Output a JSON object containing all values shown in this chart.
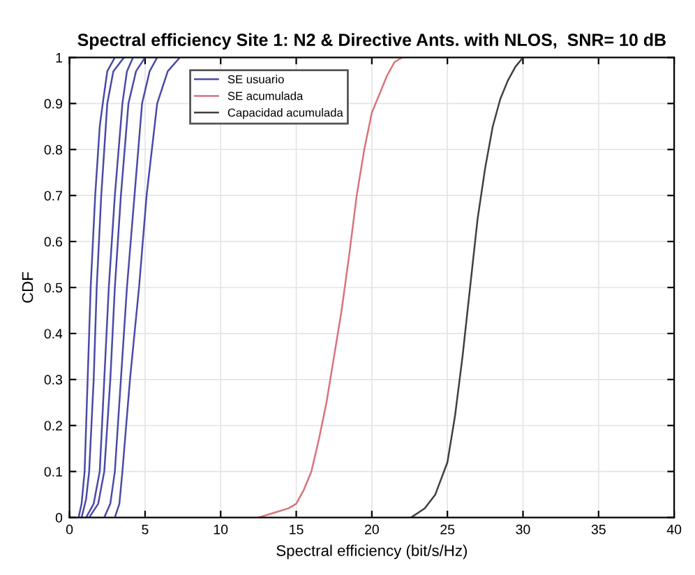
{
  "chart_data": {
    "type": "line",
    "title": "Spectral efficiency Site 1: N2 & Directive Ants. with NLOS,  SNR= 10 dB",
    "xlabel": "Spectral efficiency (bit/s/Hz)",
    "ylabel": "CDF",
    "series": [
      {
        "name": "SE usuario",
        "color": "#4a4aa8",
        "x": [
          0.6,
          0.8,
          1.0,
          1.2,
          1.4,
          1.7,
          2.0,
          2.2,
          2.5,
          3.0
        ],
        "values": [
          0,
          0.03,
          0.1,
          0.3,
          0.5,
          0.7,
          0.85,
          0.9,
          0.97,
          1
        ]
      },
      {
        "color": "#4a4aa8",
        "x": [
          0.8,
          1.1,
          1.3,
          1.6,
          1.8,
          2.1,
          2.5,
          2.9,
          3.6
        ],
        "values": [
          0,
          0.04,
          0.1,
          0.3,
          0.5,
          0.7,
          0.9,
          0.97,
          1
        ]
      },
      {
        "color": "#4a4aa8",
        "x": [
          1.1,
          1.6,
          2.0,
          2.3,
          2.6,
          3.0,
          3.5,
          3.8,
          4.2
        ],
        "values": [
          0,
          0.03,
          0.1,
          0.3,
          0.5,
          0.7,
          0.9,
          0.97,
          1
        ]
      },
      {
        "color": "#4a4aa8",
        "x": [
          1.3,
          1.9,
          2.3,
          2.7,
          3.0,
          3.4,
          3.9,
          4.4,
          5.0
        ],
        "values": [
          0,
          0.03,
          0.1,
          0.3,
          0.5,
          0.7,
          0.9,
          0.97,
          1
        ]
      },
      {
        "color": "#4a4aa8",
        "x": [
          2.3,
          2.7,
          3.0,
          3.4,
          3.8,
          4.3,
          4.8,
          5.3,
          5.8
        ],
        "values": [
          0,
          0.03,
          0.1,
          0.3,
          0.5,
          0.7,
          0.9,
          0.97,
          1
        ]
      },
      {
        "color": "#4a4aa8",
        "x": [
          3.0,
          3.3,
          3.5,
          4.0,
          4.6,
          5.1,
          5.8,
          6.5,
          7.3
        ],
        "values": [
          0,
          0.03,
          0.1,
          0.3,
          0.5,
          0.7,
          0.9,
          0.97,
          1
        ]
      },
      {
        "name": "SE acumulada",
        "color": "#d9737a",
        "x": [
          12.5,
          13.5,
          14.5,
          15.0,
          15.5,
          16.0,
          16.5,
          17.0,
          17.5,
          18.0,
          18.5,
          19.0,
          19.5,
          20.0,
          20.5,
          21.0,
          21.5,
          22.0
        ],
        "values": [
          0,
          0.01,
          0.02,
          0.03,
          0.06,
          0.1,
          0.17,
          0.25,
          0.35,
          0.45,
          0.57,
          0.7,
          0.8,
          0.88,
          0.92,
          0.96,
          0.99,
          1
        ]
      },
      {
        "name": "Capacidad acumulada",
        "color": "#404040",
        "x": [
          22.6,
          23.5,
          24.2,
          25.0,
          25.5,
          26.0,
          26.5,
          27.0,
          27.5,
          28.0,
          28.5,
          29.0,
          29.5,
          30.0
        ],
        "values": [
          0,
          0.02,
          0.05,
          0.12,
          0.22,
          0.35,
          0.5,
          0.65,
          0.76,
          0.85,
          0.91,
          0.95,
          0.98,
          1
        ]
      }
    ],
    "xlim": [
      0,
      40
    ],
    "xticks": [
      0,
      5,
      10,
      15,
      20,
      25,
      30,
      35,
      40
    ],
    "ylim": [
      0,
      1
    ],
    "yticks": [
      0,
      0.1,
      0.2,
      0.3,
      0.4,
      0.5,
      0.6,
      0.7,
      0.8,
      0.9,
      1
    ],
    "grid": true,
    "legend": "top left",
    "marker": "none",
    "line_style": "solid"
  }
}
